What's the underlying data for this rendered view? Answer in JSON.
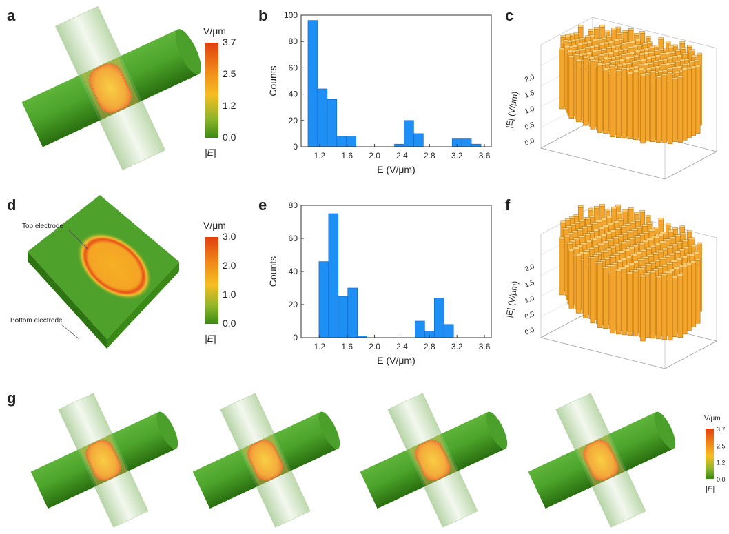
{
  "labels": [
    "a",
    "b",
    "c",
    "d",
    "e",
    "f",
    "g"
  ],
  "panel_a": {
    "colorbar": {
      "unit": "V/μm",
      "ticks": [
        "3.7",
        "2.5",
        "1.2",
        "0.0"
      ],
      "quantity": "|E|"
    }
  },
  "panel_c": {
    "zlabel": "|E| (V/μm)",
    "zticks": [
      "0.0",
      "0.5",
      "1.0",
      "1.5",
      "2.0"
    ]
  },
  "panel_d": {
    "top_label": "Top electrode",
    "bottom_label": "Bottom electrode",
    "colorbar": {
      "unit": "V/μm",
      "ticks": [
        "3.0",
        "2.0",
        "1.0",
        "0.0"
      ],
      "quantity": "|E|"
    }
  },
  "panel_f": {
    "zlabel": "|E| (V/μm)",
    "zticks": [
      "0.0",
      "0.5",
      "1.0",
      "1.5",
      "2.0"
    ]
  },
  "panel_g": {
    "colorbar": {
      "unit": "V/μm",
      "ticks": [
        "3.7",
        "2.5",
        "1.2",
        "0.0"
      ],
      "quantity": "|E|"
    }
  },
  "chart_data": [
    {
      "type": "histogram",
      "xlabel": "E (V/μm)",
      "ylabel": "Counts",
      "color": "#1e8ff5",
      "bins": [
        1.03,
        1.17,
        1.31,
        1.45,
        1.59,
        1.73,
        1.87,
        2.01,
        2.15,
        2.29,
        2.43,
        2.57,
        2.71,
        2.85,
        2.99,
        3.13,
        3.27,
        3.41,
        3.55,
        3.69
      ],
      "values": [
        96,
        44,
        36,
        8,
        8,
        0,
        0,
        0,
        0,
        2,
        20,
        10,
        0,
        0,
        0,
        6,
        6,
        2,
        0
      ],
      "xlim": [
        0.93,
        3.7
      ],
      "ylim": [
        0,
        100
      ],
      "xticks": [
        1.2,
        1.6,
        {
          "value": 2,
          "label": "2.0"
        },
        2.4,
        2.8,
        3.2,
        3.6
      ],
      "yticks": [
        0,
        20,
        40,
        60,
        80,
        100
      ]
    },
    {
      "type": "histogram",
      "xlabel": "E (V/μm)",
      "ylabel": "Counts",
      "color": "#1e8ff5",
      "bins": [
        1.19,
        1.33,
        1.47,
        1.61,
        1.75,
        1.89,
        2.03,
        2.17,
        2.31,
        2.45,
        2.59,
        2.73,
        2.87,
        3.01,
        3.15
      ],
      "values": [
        46,
        75,
        25,
        30,
        1,
        0,
        0,
        0,
        0,
        0,
        10,
        4,
        24,
        8
      ],
      "xlim": [
        0.93,
        3.7
      ],
      "ylim": [
        0,
        80
      ],
      "xticks": [
        1.2,
        1.6,
        {
          "value": 2,
          "label": "2.0"
        },
        2.4,
        2.8,
        3.2,
        3.6
      ],
      "yticks": [
        0,
        20,
        40,
        60,
        80
      ]
    }
  ]
}
